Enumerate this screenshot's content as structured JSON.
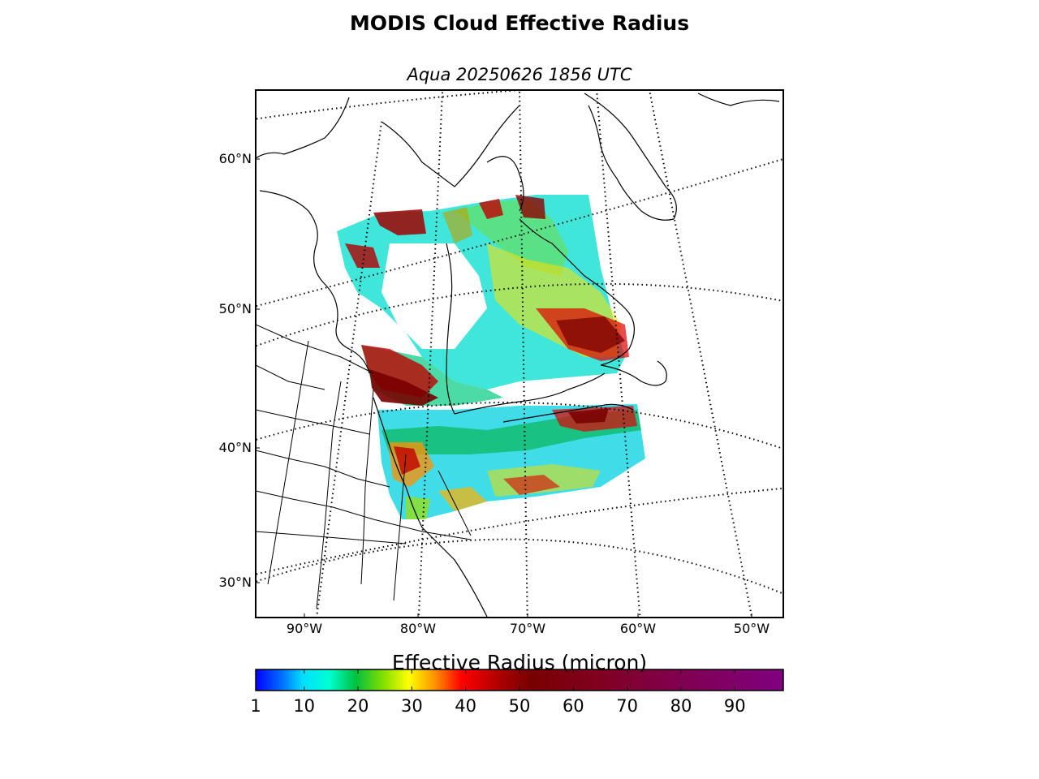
{
  "title": "MODIS Cloud Effective Radius",
  "subtitle": "Aqua 20250626 1856 UTC",
  "map": {
    "projection": "polar-stereographic",
    "lat_labels": [
      "60°N",
      "50°N",
      "40°N",
      "30°N"
    ],
    "lon_labels": [
      "90°W",
      "80°W",
      "70°W",
      "60°W",
      "50°W"
    ],
    "graticule": "dotted",
    "coastline_color": "#000000"
  },
  "colorbar": {
    "label": "Effective Radius (micron)",
    "tick_labels": [
      "1",
      "10",
      "20",
      "30",
      "40",
      "50",
      "60",
      "70",
      "80",
      "90"
    ],
    "range": [
      1,
      99
    ],
    "colors": [
      "#0000ff",
      "#00a0ff",
      "#00ffff",
      "#00dd80",
      "#00bb00",
      "#a0e000",
      "#ffff00",
      "#ffa000",
      "#ff0000",
      "#c00000",
      "#780000",
      "#800020",
      "#800050",
      "#800080"
    ]
  },
  "chart_data": {
    "type": "heatmap",
    "title": "MODIS Cloud Effective Radius",
    "subtitle": "Aqua 20250626 1856 UTC",
    "variable": "Effective Radius (micron)",
    "value_range": [
      1,
      99
    ],
    "colorbar_ticks": [
      1,
      10,
      20,
      30,
      40,
      50,
      60,
      70,
      80,
      90
    ],
    "lat_ticks": [
      60,
      50,
      40,
      30
    ],
    "lon_ticks": [
      -90,
      -80,
      -70,
      -60,
      -50
    ]
  }
}
